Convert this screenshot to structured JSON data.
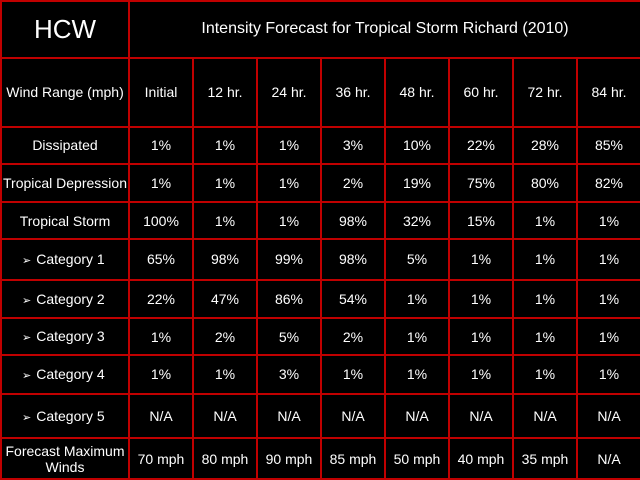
{
  "logo": "HCW",
  "title": "Intensity Forecast for Tropical Storm Richard (2010)",
  "header_label": "Wind Range (mph)",
  "columns": [
    "Initial",
    "12 hr.",
    "24 hr.",
    "36 hr.",
    "48 hr.",
    "60 hr.",
    "72 hr.",
    "84 hr."
  ],
  "arrow_glyph": "➢",
  "rows": [
    {
      "label": "Dissipated",
      "sub": false,
      "values": [
        "1%",
        "1%",
        "1%",
        "3%",
        "10%",
        "22%",
        "28%",
        "85%"
      ]
    },
    {
      "label": "Tropical Depression",
      "sub": false,
      "values": [
        "1%",
        "1%",
        "1%",
        "2%",
        "19%",
        "75%",
        "80%",
        "82%"
      ]
    },
    {
      "label": "Tropical Storm",
      "sub": false,
      "values": [
        "100%",
        "1%",
        "1%",
        "98%",
        "32%",
        "15%",
        "1%",
        "1%"
      ]
    },
    {
      "label": "Category 1",
      "sub": true,
      "values": [
        "65%",
        "98%",
        "99%",
        "98%",
        "5%",
        "1%",
        "1%",
        "1%"
      ]
    },
    {
      "label": "Category 2",
      "sub": true,
      "values": [
        "22%",
        "47%",
        "86%",
        "54%",
        "1%",
        "1%",
        "1%",
        "1%"
      ]
    },
    {
      "label": "Category 3",
      "sub": true,
      "values": [
        "1%",
        "2%",
        "5%",
        "2%",
        "1%",
        "1%",
        "1%",
        "1%"
      ]
    },
    {
      "label": "Category 4",
      "sub": true,
      "values": [
        "1%",
        "1%",
        "3%",
        "1%",
        "1%",
        "1%",
        "1%",
        "1%"
      ]
    },
    {
      "label": "Category 5",
      "sub": true,
      "values": [
        "N/A",
        "N/A",
        "N/A",
        "N/A",
        "N/A",
        "N/A",
        "N/A",
        "N/A"
      ]
    },
    {
      "label": "Forecast Maximum Winds",
      "sub": false,
      "values": [
        "70 mph",
        "80 mph",
        "90 mph",
        "85 mph",
        "50 mph",
        "40 mph",
        "35 mph",
        "N/A"
      ]
    }
  ],
  "colors": {
    "background": "#000000",
    "grid": "#c00000",
    "text": "#ffffff"
  }
}
